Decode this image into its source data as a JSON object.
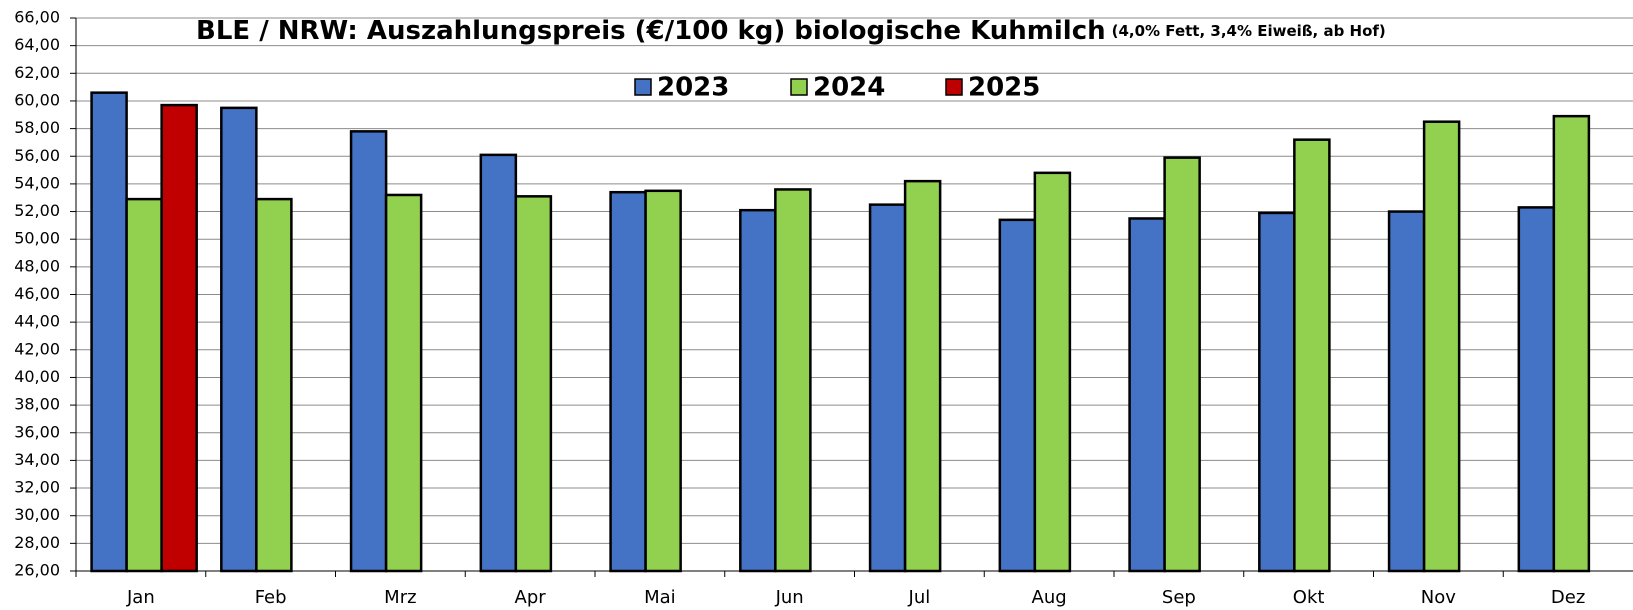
{
  "chart_data": {
    "type": "bar",
    "title": "BLE / NRW: Auszahlungspreis (€/100 kg) biologische Kuhmilch",
    "subtitle": "(4,0% Fett, 3,4% Eiweiß, ab Hof)",
    "categories": [
      "Jan",
      "Feb",
      "Mrz",
      "Apr",
      "Mai",
      "Jun",
      "Jul",
      "Aug",
      "Sep",
      "Okt",
      "Nov",
      "Dez"
    ],
    "series": [
      {
        "name": "2023",
        "color": "#4472c4",
        "values": [
          60.6,
          59.5,
          57.8,
          56.1,
          53.4,
          52.1,
          52.5,
          51.4,
          51.5,
          51.9,
          52.0,
          52.3
        ]
      },
      {
        "name": "2024",
        "color": "#92d050",
        "values": [
          52.9,
          52.9,
          53.2,
          53.1,
          53.5,
          53.6,
          54.2,
          54.8,
          55.9,
          57.2,
          58.5,
          58.9
        ]
      },
      {
        "name": "2025",
        "color": "#c00000",
        "values": [
          59.7,
          null,
          null,
          null,
          null,
          null,
          null,
          null,
          null,
          null,
          null,
          null
        ]
      }
    ],
    "ylim": [
      26,
      66
    ],
    "yticks": [
      {
        "value": 26,
        "label": "26,00"
      },
      {
        "value": 28,
        "label": "28,00"
      },
      {
        "value": 30,
        "label": "30,00"
      },
      {
        "value": 32,
        "label": "32,00"
      },
      {
        "value": 34,
        "label": "34,00"
      },
      {
        "value": 36,
        "label": "36,00"
      },
      {
        "value": 38,
        "label": "38,00"
      },
      {
        "value": 40,
        "label": "40,00"
      },
      {
        "value": 42,
        "label": "42,00"
      },
      {
        "value": 44,
        "label": "44,00"
      },
      {
        "value": 46,
        "label": "46,00"
      },
      {
        "value": 48,
        "label": "48,00"
      },
      {
        "value": 50,
        "label": "50,00"
      },
      {
        "value": 52,
        "label": "52,00"
      },
      {
        "value": 54,
        "label": "54,00"
      },
      {
        "value": 56,
        "label": "56,00"
      },
      {
        "value": 58,
        "label": "58,00"
      },
      {
        "value": 60,
        "label": "60,00"
      },
      {
        "value": 62,
        "label": "62,00"
      },
      {
        "value": 64,
        "label": "64,00"
      },
      {
        "value": 66,
        "label": "66,00"
      }
    ],
    "grid": true,
    "legend": "top"
  }
}
